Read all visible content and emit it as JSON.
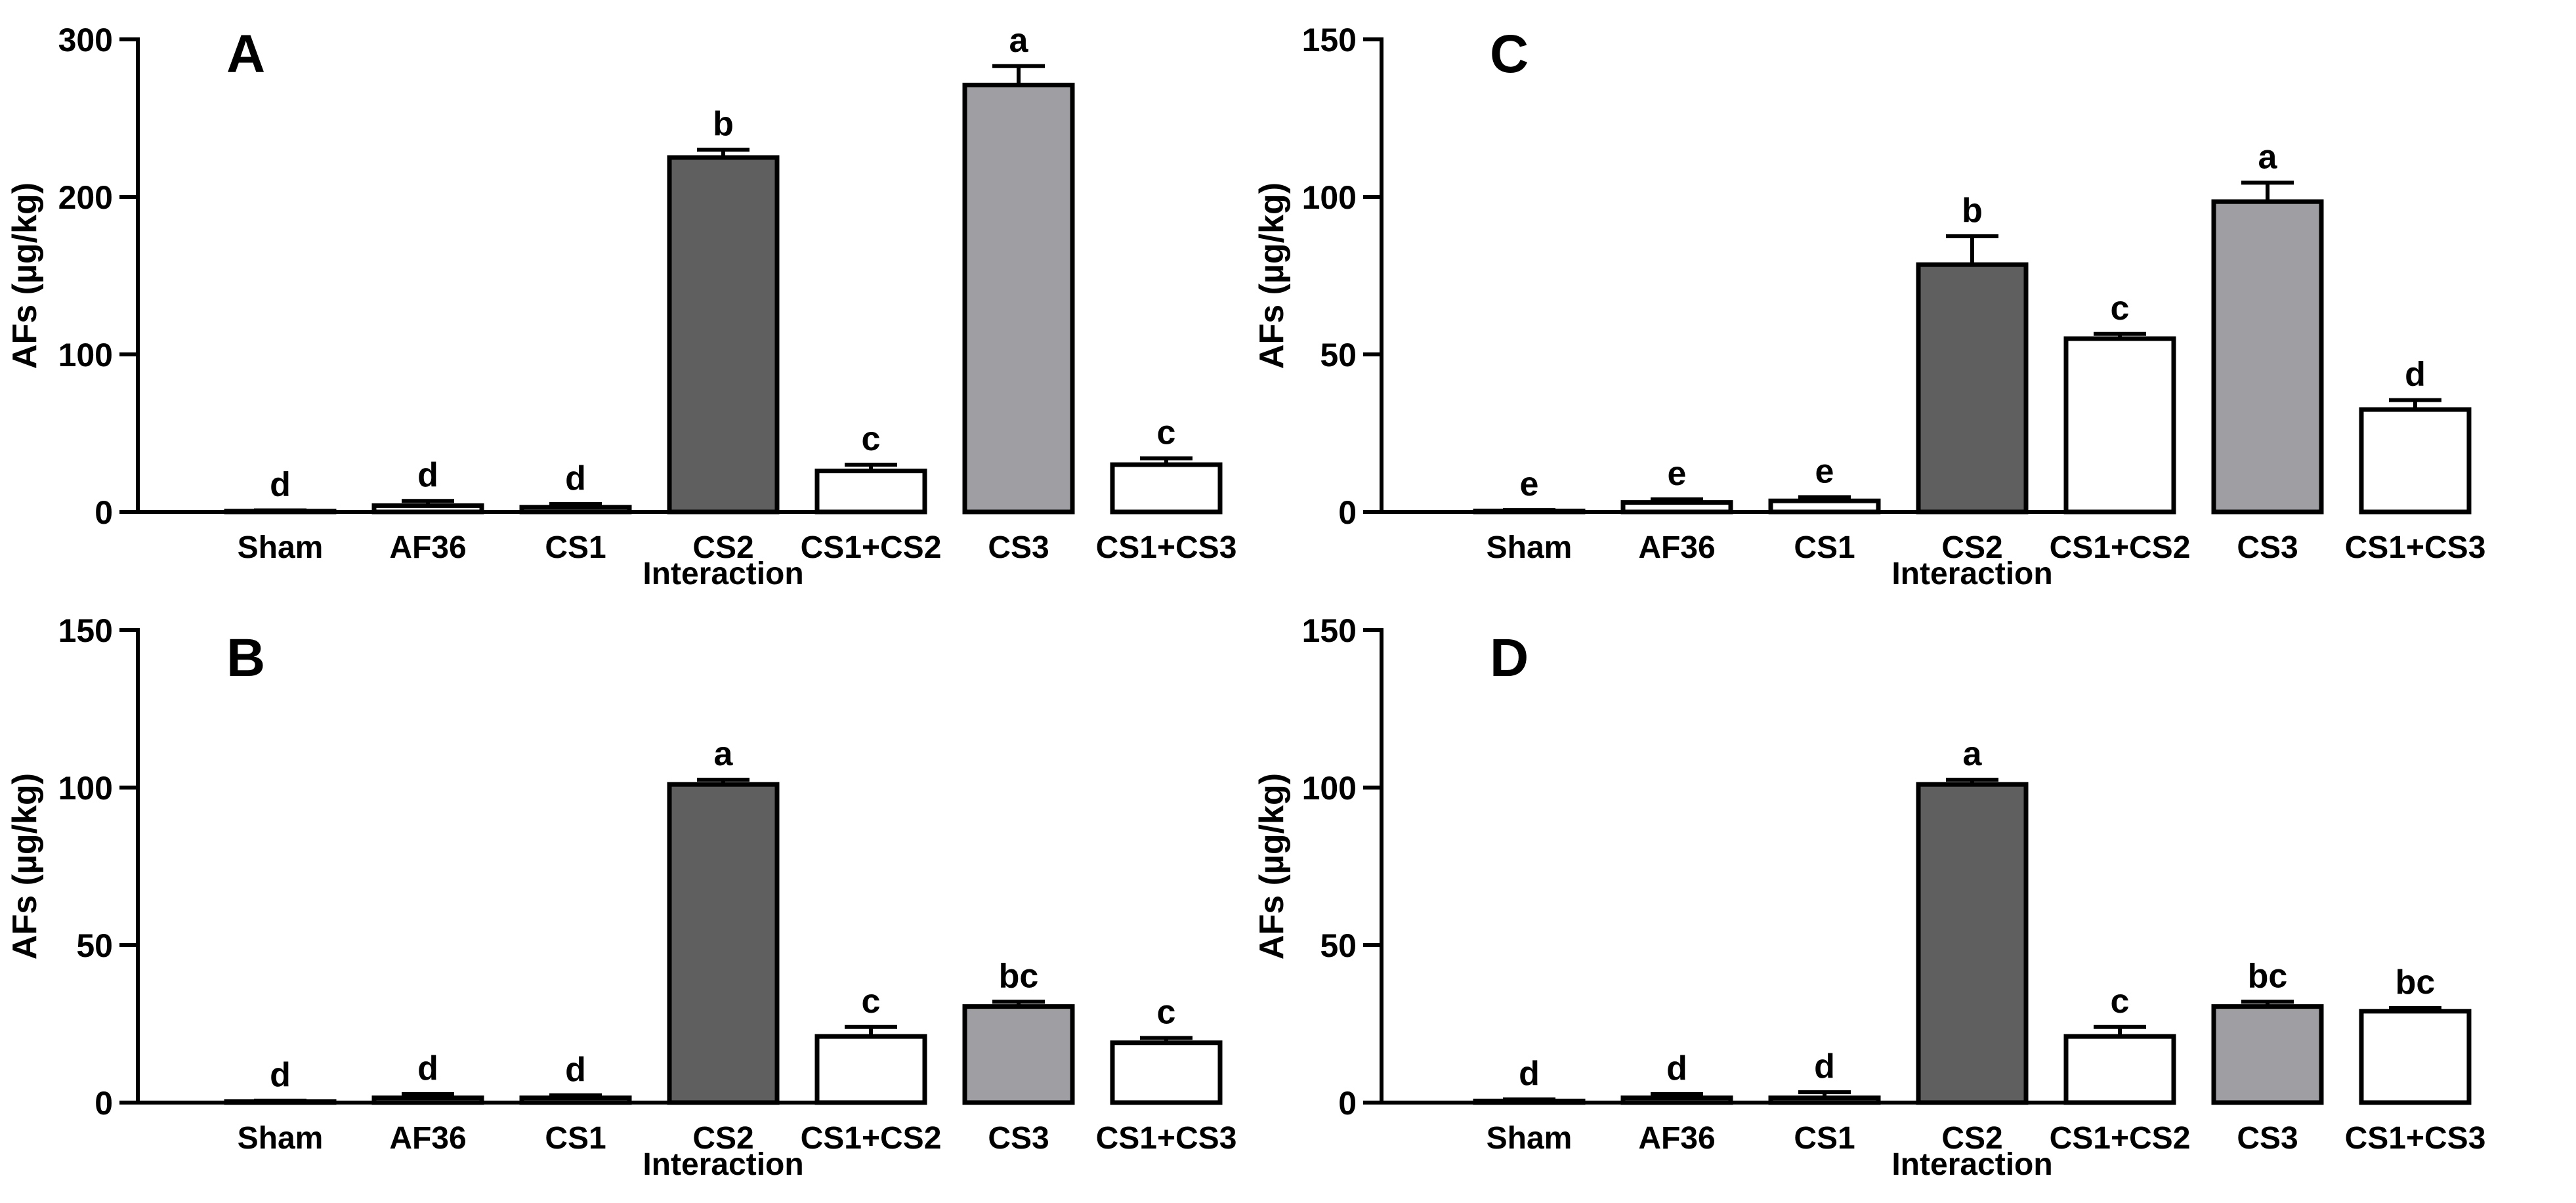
{
  "figure": {
    "x_label": "Interaction",
    "y_label": "AFs (µg/kg)",
    "categories": [
      "Sham",
      "AF36",
      "CS1",
      "CS2",
      "CS1+CS2",
      "CS3",
      "CS1+CS3"
    ],
    "colors": {
      "Sham": "#ffffff",
      "AF36": "#ffffff",
      "CS1": "#ffffff",
      "CS2": "#5f5f5f",
      "CS1+CS2": "#ffffff",
      "CS3": "#9f9fa3",
      "CS1+CS3": "#ffffff",
      "axis": "#000000"
    }
  },
  "chart_data": [
    {
      "panel": "A",
      "type": "bar",
      "categories": [
        "Sham",
        "AF36",
        "CS1",
        "CS2",
        "CS1+CS2",
        "CS3",
        "CS1+CS3"
      ],
      "values": [
        0.5,
        4,
        3,
        225,
        26,
        271,
        30
      ],
      "errors": [
        0.5,
        3,
        2,
        5,
        4,
        12,
        4
      ],
      "letters": [
        "d",
        "d",
        "d",
        "b",
        "c",
        "a",
        "c"
      ],
      "xlabel": "Interaction",
      "ylabel": "AFs (µg/kg)",
      "ylim": [
        0,
        300
      ],
      "yticks": [
        0,
        100,
        200,
        300
      ]
    },
    {
      "panel": "B",
      "type": "bar",
      "categories": [
        "Sham",
        "AF36",
        "CS1",
        "CS2",
        "CS1+CS2",
        "CS3",
        "CS1+CS3"
      ],
      "values": [
        0.3,
        1.5,
        1.5,
        101,
        21,
        30.5,
        19
      ],
      "errors": [
        0.3,
        1.2,
        0.8,
        1.5,
        3,
        1.5,
        1.5
      ],
      "letters": [
        "d",
        "d",
        "d",
        "a",
        "c",
        "bc",
        "c"
      ],
      "xlabel": "Interaction",
      "ylabel": "AFs (µg/kg)",
      "ylim": [
        0,
        150
      ],
      "yticks": [
        0,
        50,
        100,
        150
      ]
    },
    {
      "panel": "C",
      "type": "bar",
      "categories": [
        "Sham",
        "AF36",
        "CS1",
        "CS2",
        "CS1+CS2",
        "CS3",
        "CS1+CS3"
      ],
      "values": [
        0.3,
        3,
        3.5,
        78.5,
        55,
        98.5,
        32.5
      ],
      "errors": [
        0.3,
        1,
        1.2,
        9,
        1.5,
        6,
        3
      ],
      "letters": [
        "e",
        "e",
        "e",
        "b",
        "c",
        "a",
        "d"
      ],
      "xlabel": "Interaction",
      "ylabel": "AFs (µg/kg)",
      "ylim": [
        0,
        150
      ],
      "yticks": [
        0,
        50,
        100,
        150
      ]
    },
    {
      "panel": "D",
      "type": "bar",
      "categories": [
        "Sham",
        "AF36",
        "CS1",
        "CS2",
        "CS1+CS2",
        "CS3",
        "CS1+CS3"
      ],
      "values": [
        0.5,
        1.5,
        1.5,
        101,
        21,
        30.5,
        29
      ],
      "errors": [
        0.5,
        1.2,
        1.8,
        1.5,
        3,
        1.5,
        1
      ],
      "letters": [
        "d",
        "d",
        "d",
        "a",
        "c",
        "bc",
        "bc"
      ],
      "xlabel": "Interaction",
      "ylabel": "AFs (µg/kg)",
      "ylim": [
        0,
        150
      ],
      "yticks": [
        0,
        50,
        100,
        150
      ]
    }
  ]
}
